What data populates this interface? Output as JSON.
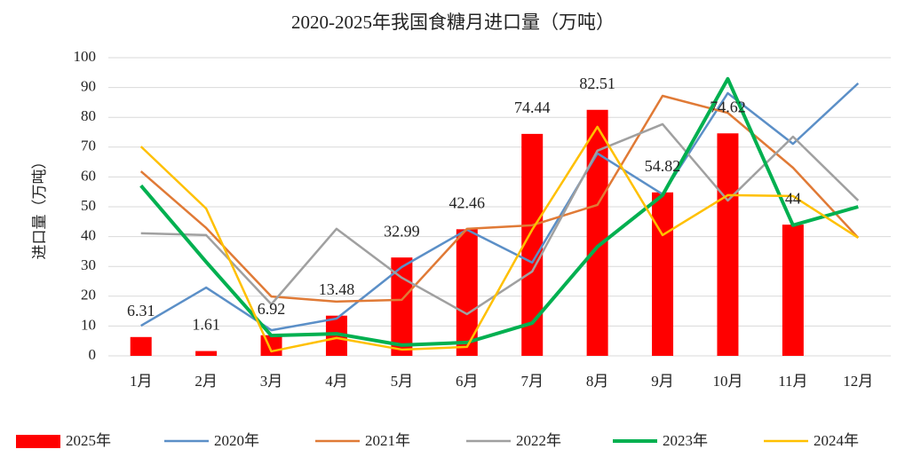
{
  "chart_data": {
    "type": "bar",
    "title": "2020-2025年我国食糖月进口量（万吨）",
    "y_label": "进口量（万吨）",
    "categories": [
      "1月",
      "2月",
      "3月",
      "4月",
      "5月",
      "6月",
      "7月",
      "8月",
      "9月",
      "10月",
      "11月",
      "12月"
    ],
    "ylim": [
      0,
      100
    ],
    "yticks": [
      0,
      10,
      20,
      30,
      40,
      50,
      60,
      70,
      80,
      90,
      100
    ],
    "grid": true,
    "legend": "bottom",
    "series": [
      {
        "name": "2025年",
        "type": "bar",
        "color": "#ff0000",
        "values": [
          6.31,
          1.61,
          6.92,
          13.48,
          32.99,
          42.46,
          74.44,
          82.51,
          54.82,
          74.62,
          44,
          null
        ],
        "value_labels": [
          "6.31",
          "1.61",
          "6.92",
          "13.48",
          "32.99",
          "42.46",
          "74.44",
          "82.51",
          "54.82",
          "74.62",
          "44",
          null
        ]
      },
      {
        "name": "2020年",
        "type": "line",
        "color": "#5b8fc7",
        "values": [
          10.1,
          22.9,
          8.6,
          12.5,
          29.8,
          42.3,
          31.3,
          67.9,
          54.2,
          88.1,
          71.1,
          91.4
        ]
      },
      {
        "name": "2021年",
        "type": "line",
        "color": "#e07a36",
        "values": [
          61.9,
          42.9,
          19.9,
          18.2,
          18.8,
          42.6,
          43.8,
          50.6,
          87.2,
          81.5,
          63.1,
          39.6
        ]
      },
      {
        "name": "2022年",
        "type": "line",
        "color": "#a0a0a0",
        "values": [
          41.1,
          40.5,
          17.3,
          42.6,
          26.2,
          14.0,
          28.3,
          68.8,
          77.7,
          52.1,
          73.5,
          52.1
        ]
      },
      {
        "name": "2023年",
        "type": "line",
        "color": "#00b050",
        "width": 4,
        "values": [
          57.1,
          31.5,
          6.8,
          7.4,
          3.6,
          4.5,
          11.0,
          36.6,
          53.9,
          92.9,
          43.8,
          50.0
        ]
      },
      {
        "name": "2024年",
        "type": "line",
        "color": "#ffc000",
        "values": [
          70.2,
          49.4,
          1.5,
          6.0,
          2.1,
          3.0,
          42.3,
          76.8,
          40.5,
          53.9,
          53.6,
          39.6
        ]
      }
    ]
  }
}
